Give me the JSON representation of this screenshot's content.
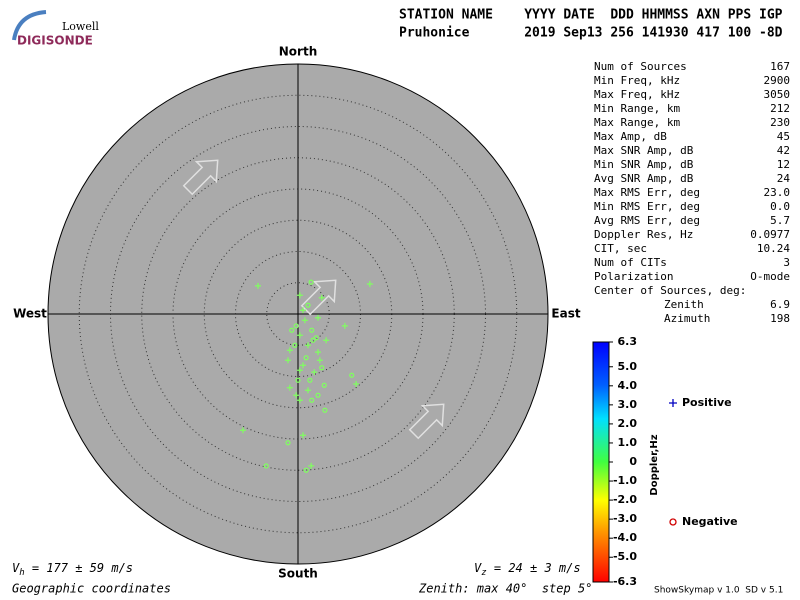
{
  "logo": {
    "top": "Lowell",
    "bottom": "DIGISONDE"
  },
  "header": {
    "row1": "STATION NAME    YYYY DATE  DDD HHMMSS AXN PPS IGP",
    "row2": "Pruhonice       2019 Sep13 256 141930 417 100 -8D"
  },
  "skymap": {
    "directions": {
      "north": "North",
      "south": "South",
      "west": "West",
      "east": "East"
    },
    "rlim": [
      0,
      40
    ],
    "rticks": [
      5,
      10,
      15,
      20,
      25,
      30,
      35
    ],
    "point_color": "#80ff60",
    "points": [
      {
        "e": -6.4,
        "n": 4.5,
        "polarity": "Positive"
      },
      {
        "e": 11.5,
        "n": 4.8,
        "polarity": "Positive"
      },
      {
        "e": 2.1,
        "n": 5.1,
        "polarity": "Negative"
      },
      {
        "e": 0.3,
        "n": 3.0,
        "polarity": "Positive"
      },
      {
        "e": 3.8,
        "n": 2.6,
        "polarity": "Positive"
      },
      {
        "e": 1.6,
        "n": 1.4,
        "polarity": "Negative"
      },
      {
        "e": 7.5,
        "n": -1.9,
        "polarity": "Positive"
      },
      {
        "e": -0.3,
        "n": -1.9,
        "polarity": "Negative"
      },
      {
        "e": -1.3,
        "n": -5.8,
        "polarity": "Positive"
      },
      {
        "e": 2.4,
        "n": -4.2,
        "polarity": "Negative"
      },
      {
        "e": 3.2,
        "n": -6.1,
        "polarity": "Positive"
      },
      {
        "e": 8.6,
        "n": -9.8,
        "polarity": "Negative"
      },
      {
        "e": 9.3,
        "n": -11.2,
        "polarity": "Positive"
      },
      {
        "e": 0.8,
        "n": -8.2,
        "polarity": "Positive"
      },
      {
        "e": 1.9,
        "n": -10.6,
        "polarity": "Negative"
      },
      {
        "e": -0.3,
        "n": -13.0,
        "polarity": "Positive"
      },
      {
        "e": 4.3,
        "n": -15.4,
        "polarity": "Negative"
      },
      {
        "e": -8.8,
        "n": -18.6,
        "polarity": "Positive"
      },
      {
        "e": 0.8,
        "n": -19.4,
        "polarity": "Positive"
      },
      {
        "e": -1.6,
        "n": -20.6,
        "polarity": "Negative"
      },
      {
        "e": -5.1,
        "n": -24.3,
        "polarity": "Negative"
      },
      {
        "e": 2.1,
        "n": -24.3,
        "polarity": "Positive"
      },
      {
        "e": 1.3,
        "n": -25.0,
        "polarity": "Negative"
      },
      {
        "e": 1.1,
        "n": -1.0,
        "polarity": "Positive"
      },
      {
        "e": 2.2,
        "n": -2.6,
        "polarity": "Negative"
      },
      {
        "e": 0.3,
        "n": -3.4,
        "polarity": "Positive"
      },
      {
        "e": 1.6,
        "n": -5.0,
        "polarity": "Positive"
      },
      {
        "e": 2.9,
        "n": -3.8,
        "polarity": "Negative"
      },
      {
        "e": -0.5,
        "n": -5.0,
        "polarity": "Negative"
      },
      {
        "e": 3.5,
        "n": -7.4,
        "polarity": "Positive"
      },
      {
        "e": 1.3,
        "n": -7.0,
        "polarity": "Negative"
      },
      {
        "e": 0.3,
        "n": -9.0,
        "polarity": "Positive"
      },
      {
        "e": 2.6,
        "n": -9.3,
        "polarity": "Positive"
      },
      {
        "e": 3.8,
        "n": -8.6,
        "polarity": "Negative"
      },
      {
        "e": 0.0,
        "n": -10.6,
        "polarity": "Negative"
      },
      {
        "e": 1.6,
        "n": -12.2,
        "polarity": "Positive"
      },
      {
        "e": 3.2,
        "n": -13.0,
        "polarity": "Negative"
      },
      {
        "e": -1.3,
        "n": -11.8,
        "polarity": "Positive"
      },
      {
        "e": 2.2,
        "n": -13.8,
        "polarity": "Negative"
      },
      {
        "e": 0.8,
        "n": 0.6,
        "polarity": "Positive"
      },
      {
        "e": 3.2,
        "n": -0.6,
        "polarity": "Positive"
      },
      {
        "e": 4.5,
        "n": -4.2,
        "polarity": "Positive"
      },
      {
        "e": -1.0,
        "n": -2.6,
        "polarity": "Negative"
      },
      {
        "e": -1.6,
        "n": -7.4,
        "polarity": "Positive"
      },
      {
        "e": 4.2,
        "n": -11.4,
        "polarity": "Negative"
      },
      {
        "e": 0.3,
        "n": -13.8,
        "polarity": "Positive"
      }
    ]
  },
  "stats": [
    {
      "label": "Num of Sources",
      "value": "167"
    },
    {
      "label": "Min Freq, kHz",
      "value": "2900"
    },
    {
      "label": "Max Freq, kHz",
      "value": "3050"
    },
    {
      "label": "Min Range, km",
      "value": "212"
    },
    {
      "label": "Max Range, km",
      "value": "230"
    },
    {
      "label": "Max Amp, dB",
      "value": "45"
    },
    {
      "label": "Max SNR Amp, dB",
      "value": "42"
    },
    {
      "label": "Min SNR Amp, dB",
      "value": "12"
    },
    {
      "label": "Avg SNR Amp, dB",
      "value": "24"
    },
    {
      "label": "Max RMS Err, deg",
      "value": "23.0"
    },
    {
      "label": "Min RMS Err, deg",
      "value": "0.0"
    },
    {
      "label": "Avg RMS Err, deg",
      "value": "5.7"
    },
    {
      "label": "Doppler Res, Hz",
      "value": "0.0977"
    },
    {
      "label": "CIT, sec",
      "value": "10.24"
    },
    {
      "label": "Num of CITs",
      "value": "3"
    },
    {
      "label": "Polarization",
      "value": "O-mode"
    },
    {
      "label": "Center of Sources, deg:"
    },
    {
      "label": "Zenith",
      "value": "6.9",
      "indent": true
    },
    {
      "label": "Azimuth",
      "value": "198",
      "indent": true
    }
  ],
  "colorbar": {
    "label": "Doppler,Hz",
    "lim": [
      -6.3,
      6.3
    ],
    "ticks": [
      6.3,
      {
        "value": 5,
        "label": "5.0"
      },
      {
        "value": 4,
        "label": "4.0"
      },
      {
        "value": 3,
        "label": "3.0"
      },
      {
        "value": 2,
        "label": "2.0"
      },
      {
        "value": 1,
        "label": "1.0"
      },
      0,
      {
        "value": -1,
        "label": "-1.0"
      },
      {
        "value": -2,
        "label": "-2.0"
      },
      {
        "value": -3,
        "label": "-3.0"
      },
      {
        "value": -4,
        "label": "-4.0"
      },
      {
        "value": -5,
        "label": "-5.0"
      },
      -6.3
    ],
    "positive": {
      "text": "Positive",
      "color": "#0000c0"
    },
    "negative": {
      "text": "Negative",
      "color": "#d00000"
    }
  },
  "footer": {
    "vh": {
      "symbol": "V",
      "sub": "h",
      "text": " = 177 ± 59 m/s"
    },
    "vz": {
      "symbol": "V",
      "sub": "z",
      "text": " = 24 ± 3 m/s"
    },
    "coords": "Geographic coordinates",
    "zenith": "Zenith: max 40°  step 5°",
    "version": "ShowSkymap v 1.0  SD v 5.1"
  }
}
